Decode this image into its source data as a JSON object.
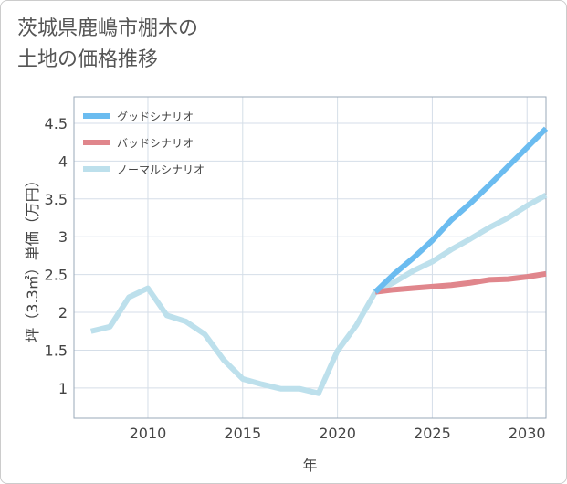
{
  "chart_data": {
    "type": "line",
    "title": "茨城県鹿嶋市棚木の\n土地の価格推移",
    "xlabel": "年",
    "ylabel": "坪（3.3㎡）単価（万円）",
    "xlim": [
      2006.1,
      2031
    ],
    "ylim": [
      0.6,
      4.85
    ],
    "xticks": [
      2010,
      2015,
      2020,
      2025,
      2030
    ],
    "yticks": [
      1,
      1.5,
      2,
      2.5,
      3,
      3.5,
      4,
      4.5
    ],
    "grid": true,
    "legend_position": "top-left",
    "series": [
      {
        "name": "グッドシナリオ",
        "color": "#6bbcf0",
        "x": [
          2022,
          2023,
          2024,
          2025,
          2026,
          2027,
          2028,
          2029,
          2030,
          2031
        ],
        "values": [
          2.27,
          2.51,
          2.72,
          2.95,
          3.22,
          3.44,
          3.68,
          3.93,
          4.18,
          4.43
        ]
      },
      {
        "name": "バッドシナリオ",
        "color": "#e0868c",
        "x": [
          2022,
          2023,
          2024,
          2025,
          2026,
          2027,
          2028,
          2029,
          2030,
          2031
        ],
        "values": [
          2.27,
          2.3,
          2.32,
          2.34,
          2.36,
          2.39,
          2.43,
          2.44,
          2.47,
          2.51
        ]
      },
      {
        "name": "ノーマルシナリオ",
        "color": "#bde0ec",
        "x": [
          2007,
          2008,
          2009,
          2010,
          2011,
          2012,
          2013,
          2014,
          2015,
          2016,
          2017,
          2018,
          2019,
          2020,
          2021,
          2022,
          2023,
          2024,
          2025,
          2026,
          2027,
          2028,
          2029,
          2030,
          2031
        ],
        "values": [
          1.75,
          1.81,
          2.2,
          2.32,
          1.96,
          1.88,
          1.71,
          1.37,
          1.12,
          1.05,
          0.99,
          0.99,
          0.93,
          1.49,
          1.83,
          2.27,
          2.4,
          2.55,
          2.67,
          2.83,
          2.97,
          3.12,
          3.25,
          3.41,
          3.55
        ]
      }
    ]
  }
}
